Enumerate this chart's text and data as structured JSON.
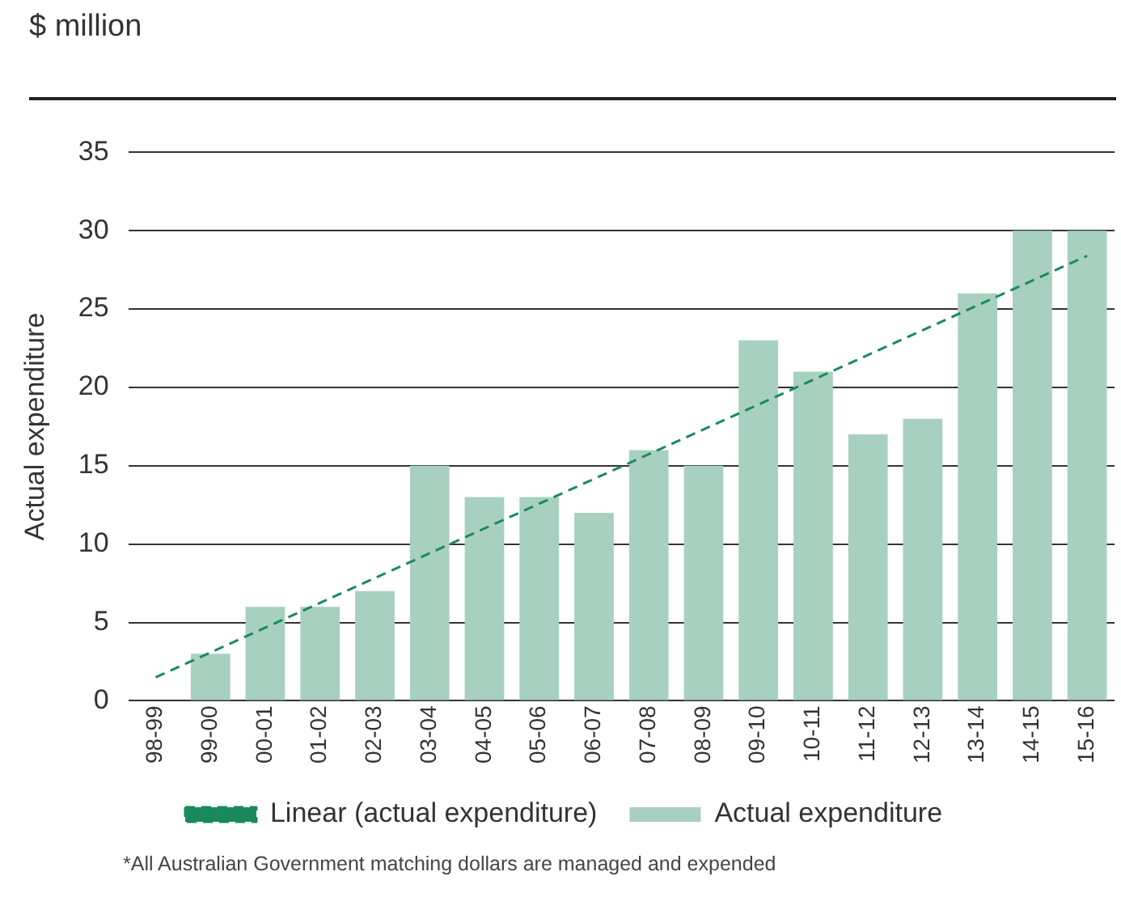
{
  "chart_data": {
    "type": "bar",
    "title": "$ million",
    "ylabel": "Actual expenditure",
    "categories": [
      "98-99",
      "99-00",
      "00-01",
      "01-02",
      "02-03",
      "03-04",
      "04-05",
      "05-06",
      "06-07",
      "07-08",
      "08-09",
      "09-10",
      "10-11",
      "11-12",
      "12-13",
      "13-14",
      "14-15",
      "15-16"
    ],
    "series": [
      {
        "name": "Actual expenditure",
        "color": "#a8d0c0",
        "values": [
          0,
          3,
          6,
          6,
          7,
          15,
          13,
          13,
          12,
          16,
          15,
          23,
          21,
          17,
          18,
          26,
          30,
          30
        ]
      },
      {
        "name": "Linear (actual expenditure)",
        "type": "line",
        "color": "#1a8a5a",
        "line_style": "dashed",
        "x": [
          "98-99",
          "15-16"
        ],
        "values": [
          1.5,
          28.4
        ]
      }
    ],
    "ylim": [
      0,
      35
    ],
    "yticks": [
      0,
      5,
      10,
      15,
      20,
      25,
      30,
      35
    ],
    "grid": "y",
    "legend": "bottom",
    "marker": "none",
    "annotations": [
      "*All Australian Government matching dollars are managed and expended"
    ]
  }
}
